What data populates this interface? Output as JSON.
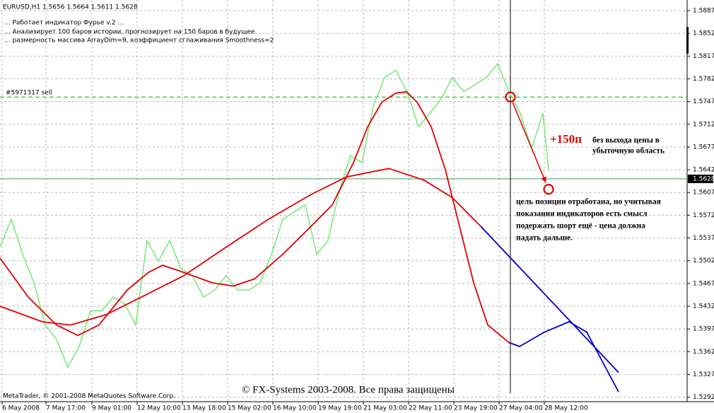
{
  "chart_data": {
    "type": "line",
    "title": "EURUSD,H1  1.5656 1.5664 1.5611 1.5628",
    "info_lines": [
      "... Работает индикатор Фурье v.2    ...",
      "... Анализирует 100 баров истории, прогнозирует на 150 баров в будущее",
      "... размерность массива ArrayDim=9, коэффициент сглаживания Smoothness=2"
    ],
    "order_label": "#5971317 sell",
    "order_level": 1.5754,
    "last_price": 1.5628,
    "vertical_line_x": 180.5,
    "profit_label": "+150п",
    "profit_note": [
      "без выхода цены в",
      "убыточную область"
    ],
    "comment_lines": [
      "цель позиции отработана, но учитывая",
      "показания индикаторов есть смысл",
      "подержать шорт ещё - цена должна",
      "падать дальше."
    ],
    "footer_left": "MetaTrader, © 2001-2008 MetaQuotes Software Corp.",
    "footer_center": "© FX-Systems 2003-2008. Все права защищены",
    "markers": [
      {
        "x": 180.5,
        "y": 1.5754
      },
      {
        "x": 194,
        "y": 1.5612
      }
    ],
    "xlim": [
      0,
      252.5
    ],
    "ylim": [
      1.5285,
      1.5899
    ],
    "xticks": [
      {
        "value": 0.75,
        "label": "6 May 2008"
      },
      {
        "value": 16.25,
        "label": "7 May 17:00"
      },
      {
        "value": 32.5,
        "label": "9 May 01:00"
      },
      {
        "value": 48.5,
        "label": "12 May 10:00"
      },
      {
        "value": 64.5,
        "label": "13 May 18:00"
      },
      {
        "value": 80.5,
        "label": "15 May 02:00"
      },
      {
        "value": 96.5,
        "label": "16 May 10:00"
      },
      {
        "value": 112.5,
        "label": "19 May 19:00"
      },
      {
        "value": 128.5,
        "label": "21 May 03:00"
      },
      {
        "value": 144.5,
        "label": "22 May 11:00"
      },
      {
        "value": 160.5,
        "label": "23 May 19:00"
      },
      {
        "value": 176.5,
        "label": "27 May 04:00"
      },
      {
        "value": 192.5,
        "label": "28 May 12:00"
      }
    ],
    "yticks": [
      1.5292,
      1.5327,
      1.5362,
      1.5397,
      1.5432,
      1.5467,
      1.5502,
      1.5537,
      1.5572,
      1.5607,
      1.5642,
      1.5677,
      1.5712,
      1.5747,
      1.5782,
      1.5817,
      1.5852,
      1.5887
    ],
    "grid": true,
    "series": [
      {
        "color": "#7de87d",
        "x": [
          0,
          4,
          8,
          12,
          16,
          20,
          24,
          28,
          32,
          36,
          40,
          44,
          48,
          52,
          56,
          60,
          64,
          68,
          72,
          76,
          80,
          84,
          88,
          92,
          96,
          100,
          104,
          108,
          112,
          116,
          120,
          124,
          128,
          132,
          136,
          140,
          144,
          148,
          152,
          156,
          160,
          164,
          168,
          172,
          176,
          180,
          184,
          188,
          192,
          194
        ],
        "values": [
          1.5523,
          1.5566,
          1.5512,
          1.5468,
          1.5403,
          1.5381,
          1.5338,
          1.537,
          1.5425,
          1.5425,
          1.5446,
          1.5436,
          1.5403,
          1.5533,
          1.5501,
          1.5533,
          1.549,
          1.5479,
          1.5446,
          1.5457,
          1.5479,
          1.5457,
          1.5457,
          1.5468,
          1.5512,
          1.5566,
          1.5577,
          1.5588,
          1.5512,
          1.5533,
          1.561,
          1.5664,
          1.5653,
          1.574,
          1.5784,
          1.5795,
          1.5762,
          1.5708,
          1.5729,
          1.5751,
          1.5784,
          1.5762,
          1.5773,
          1.5784,
          1.5805,
          1.5762,
          1.5729,
          1.5675,
          1.5729,
          1.5642
        ]
      },
      {
        "color": "#e00000",
        "x": [
          0,
          10,
          20,
          27.5,
          35,
          45,
          52.5,
          57.5,
          65,
          75,
          82.5,
          90,
          100,
          110,
          117.5,
          125,
          130,
          135,
          140,
          143.75,
          147.5,
          152.5,
          157.5,
          162.5,
          167.5,
          172.5,
          180
        ],
        "values": [
          1.5506,
          1.5446,
          1.5403,
          1.5387,
          1.5403,
          1.5457,
          1.5484,
          1.5495,
          1.5484,
          1.5468,
          1.5463,
          1.5474,
          1.5512,
          1.5555,
          1.5588,
          1.5653,
          1.5708,
          1.5746,
          1.576,
          1.5762,
          1.5746,
          1.5708,
          1.5642,
          1.5555,
          1.5468,
          1.5403,
          1.5376
        ]
      },
      {
        "color": "#0000cc",
        "x": [
          180,
          183.75,
          192.5,
          201.25,
          207.5,
          218.75
        ],
        "values": [
          1.5376,
          1.537,
          1.5392,
          1.5408,
          1.5392,
          1.53
        ]
      },
      {
        "color": "#e00000",
        "x": [
          0,
          15,
          25,
          37.5,
          50,
          65,
          80,
          95,
          110,
          122.5,
          137.5,
          150,
          160,
          170
        ],
        "values": [
          1.5432,
          1.5408,
          1.5403,
          1.5419,
          1.5446,
          1.5479,
          1.5523,
          1.5566,
          1.5604,
          1.5631,
          1.5644,
          1.5626,
          1.5599,
          1.5555
        ]
      },
      {
        "color": "#0000cc",
        "x": [
          170,
          218.75
        ],
        "values": [
          1.5555,
          1.533
        ]
      }
    ]
  }
}
